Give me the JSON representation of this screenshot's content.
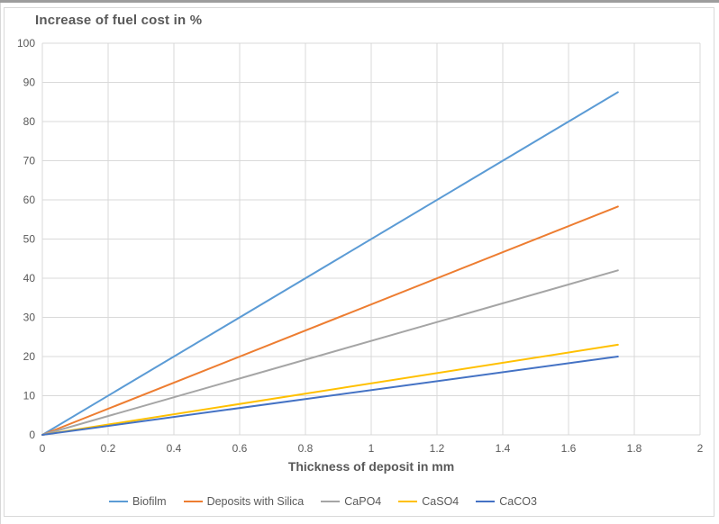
{
  "chart_data": {
    "type": "line",
    "title": "Increase of fuel cost in %",
    "xlabel": "Thickness of deposit in mm",
    "ylabel": "",
    "xlim": [
      0,
      2
    ],
    "ylim": [
      0,
      100
    ],
    "x_ticks": [
      0,
      0.2,
      0.4,
      0.6,
      0.8,
      1,
      1.2,
      1.4,
      1.6,
      1.8,
      2
    ],
    "y_ticks": [
      0,
      10,
      20,
      30,
      40,
      50,
      60,
      70,
      80,
      90,
      100
    ],
    "grid": true,
    "legend_position": "bottom",
    "grid_color": "#d9d9d9",
    "axis_color": "#d9d9d9",
    "tick_color": "#595959",
    "title_color": "#595959",
    "series": [
      {
        "name": "Biofilm",
        "color": "#5B9BD5",
        "x": [
          0,
          1.75
        ],
        "y": [
          0,
          87.5
        ]
      },
      {
        "name": "Deposits with Silica",
        "color": "#ED7D31",
        "x": [
          0,
          1.75
        ],
        "y": [
          0,
          58.3
        ]
      },
      {
        "name": "CaPO4",
        "color": "#A5A5A5",
        "x": [
          0,
          1.75
        ],
        "y": [
          0,
          42
        ]
      },
      {
        "name": "CaSO4",
        "color": "#FFC000",
        "x": [
          0,
          1.75
        ],
        "y": [
          0,
          23
        ]
      },
      {
        "name": "CaCO3",
        "color": "#4472C4",
        "x": [
          0,
          1.75
        ],
        "y": [
          0,
          20
        ]
      }
    ]
  }
}
